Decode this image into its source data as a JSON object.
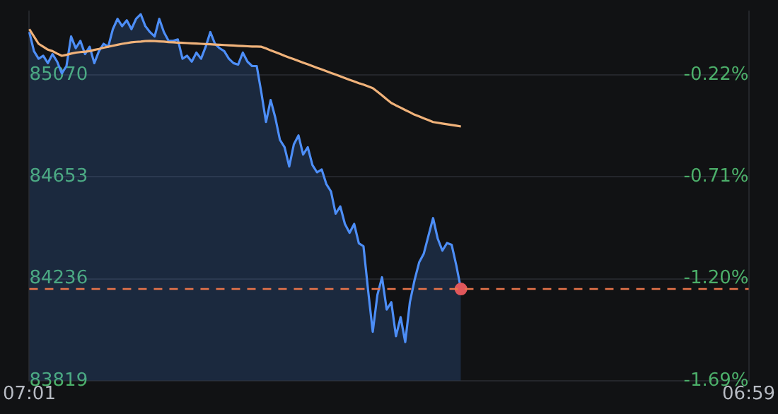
{
  "chart_data": {
    "type": "area",
    "ylim": [
      83819,
      85330
    ],
    "yticks": [
      85070,
      84653,
      84236,
      83819
    ],
    "y2lim": [
      -1.69,
      0.086
    ],
    "y2ticks": [
      {
        "value": -0.22,
        "label": "-0.22%"
      },
      {
        "value": -0.71,
        "label": "-0.71%"
      },
      {
        "value": -1.2,
        "label": "-1.20%"
      },
      {
        "value": -1.69,
        "label": "-1.69%"
      }
    ],
    "categories": [
      "07:01",
      null,
      null,
      null,
      null,
      null,
      null,
      null,
      null,
      null,
      null,
      null,
      null,
      null,
      null,
      null,
      null,
      null,
      null,
      null,
      null,
      null,
      null,
      null,
      null,
      null,
      null,
      null,
      null,
      null,
      null,
      null,
      null,
      null,
      null,
      null,
      null,
      null,
      null,
      null,
      null,
      null,
      null,
      null,
      null,
      null,
      null,
      null,
      null,
      null,
      null,
      null,
      null,
      null,
      null,
      null,
      null,
      null,
      null,
      null,
      null,
      null,
      null,
      null,
      null,
      null,
      null,
      null,
      null,
      null,
      null,
      null,
      null,
      null,
      null,
      null,
      null,
      null,
      null,
      null,
      null,
      null,
      null,
      null,
      null,
      null,
      null,
      null,
      null,
      null,
      null,
      null,
      null,
      null,
      null,
      null,
      null,
      null,
      null,
      null,
      null,
      null,
      null,
      null,
      null,
      null,
      null,
      null,
      null,
      null,
      null,
      null,
      null,
      null,
      null,
      null,
      null,
      null,
      null,
      null,
      null,
      null,
      null,
      null,
      null,
      null,
      null,
      null,
      null,
      null,
      null,
      null,
      null,
      null,
      null,
      null,
      null,
      null,
      null,
      null,
      null,
      null,
      null,
      null,
      null,
      null,
      null,
      null,
      null,
      null,
      null,
      null,
      null,
      null,
      null,
      "06:59"
    ],
    "grid": "y",
    "legend": false,
    "series": [
      {
        "color": "#4d8ef7",
        "values": [
          85245,
          85167,
          85136,
          85148,
          85118,
          85155,
          85124,
          85076,
          85106,
          85227,
          85179,
          85209,
          85155,
          85185,
          85118,
          85167,
          85197,
          85185,
          85257,
          85299,
          85269,
          85293,
          85257,
          85299,
          85318,
          85269,
          85245,
          85227,
          85299,
          85245,
          85209,
          85209,
          85215,
          85136,
          85148,
          85124,
          85161,
          85136,
          85185,
          85245,
          85197,
          85179,
          85167,
          85136,
          85118,
          85112,
          85161,
          85124,
          85106,
          85106,
          84997,
          84877,
          84967,
          84895,
          84804,
          84774,
          84695,
          84786,
          84822,
          84744,
          84774,
          84701,
          84671,
          84683,
          84623,
          84593,
          84502,
          84532,
          84460,
          84424,
          84460,
          84381,
          84369,
          84188,
          84019,
          84170,
          84242,
          84110,
          84140,
          84001,
          84079,
          83977,
          84140,
          84230,
          84303,
          84339,
          84412,
          84484,
          84400,
          84351,
          84382,
          84375,
          84291,
          84194,
          null,
          null,
          null,
          null,
          null,
          null,
          null,
          null,
          null,
          null,
          null,
          null,
          null,
          null,
          null,
          null,
          null,
          null,
          null,
          null,
          null,
          null,
          null,
          null,
          null,
          null,
          null,
          null,
          null,
          null,
          null,
          null,
          null,
          null,
          null,
          null,
          null,
          null,
          null,
          null,
          null,
          null,
          null,
          null,
          null,
          null,
          null,
          null,
          null,
          null,
          null,
          null,
          null,
          null,
          null,
          null,
          null,
          null,
          null,
          null,
          null,
          null
        ]
      },
      {
        "type": "line",
        "color": "#f0b27a",
        "values": [
          85257,
          85227,
          85197,
          85185,
          85173,
          85167,
          85157,
          85148,
          85152,
          85157,
          85161,
          85163,
          85165,
          85167,
          85172,
          85176,
          85181,
          85185,
          85189,
          85193,
          85197,
          85200,
          85203,
          85205,
          85206,
          85208,
          85209,
          85208,
          85207,
          85206,
          85204,
          85203,
          85202,
          85201,
          85200,
          85199,
          85198,
          85197,
          85196,
          85195,
          85194,
          85193,
          85192,
          85191,
          85190,
          85189,
          85188,
          85187,
          85186,
          85186,
          85185,
          85178,
          85170,
          85163,
          85156,
          85148,
          85141,
          85134,
          85127,
          85120,
          85113,
          85106,
          85099,
          85092,
          85085,
          85078,
          85071,
          85064,
          85057,
          85050,
          85043,
          85036,
          85030,
          85023,
          85016,
          85001,
          84986,
          84970,
          84955,
          84945,
          84936,
          84926,
          84917,
          84907,
          84900,
          84892,
          84885,
          84877,
          84874,
          84871,
          84868,
          84865,
          84862,
          84859,
          null,
          null,
          null,
          null,
          null,
          null,
          null,
          null,
          null,
          null,
          null,
          null,
          null,
          null,
          null,
          null,
          null,
          null,
          null,
          null,
          null,
          null,
          null,
          null,
          null,
          null,
          null,
          null,
          null,
          null,
          null,
          null,
          null,
          null,
          null,
          null,
          null,
          null,
          null,
          null,
          null,
          null,
          null,
          null,
          null,
          null,
          null,
          null,
          null,
          null,
          null,
          null,
          null,
          null,
          null,
          null,
          null,
          null,
          null,
          null,
          null,
          null
        ]
      },
      {
        "type": "scatter",
        "color": "#e0575b",
        "marker": "circle",
        "values": [
          null,
          null,
          null,
          null,
          null,
          null,
          null,
          null,
          null,
          null,
          null,
          null,
          null,
          null,
          null,
          null,
          null,
          null,
          null,
          null,
          null,
          null,
          null,
          null,
          null,
          null,
          null,
          null,
          null,
          null,
          null,
          null,
          null,
          null,
          null,
          null,
          null,
          null,
          null,
          null,
          null,
          null,
          null,
          null,
          null,
          null,
          null,
          null,
          null,
          null,
          null,
          null,
          null,
          null,
          null,
          null,
          null,
          null,
          null,
          null,
          null,
          null,
          null,
          null,
          null,
          null,
          null,
          null,
          null,
          null,
          null,
          null,
          null,
          null,
          null,
          null,
          null,
          null,
          null,
          null,
          null,
          null,
          null,
          null,
          null,
          null,
          null,
          null,
          null,
          null,
          null,
          null,
          null,
          84194,
          null,
          null,
          null,
          null,
          null,
          null,
          null,
          null,
          null,
          null,
          null,
          null,
          null,
          null,
          null,
          null,
          null,
          null,
          null,
          null,
          null,
          null,
          null,
          null,
          null,
          null,
          null,
          null,
          null,
          null,
          null,
          null,
          null,
          null,
          null,
          null,
          null,
          null,
          null,
          null,
          null,
          null,
          null,
          null,
          null,
          null,
          null,
          null,
          null,
          null,
          null,
          null,
          null,
          null,
          null,
          null,
          null,
          null,
          null,
          null,
          null,
          null
        ]
      }
    ],
    "ref_lines": [
      {
        "axis": "y",
        "value": 84194,
        "color": "#e8744a",
        "line_style": "dashed"
      }
    ]
  }
}
